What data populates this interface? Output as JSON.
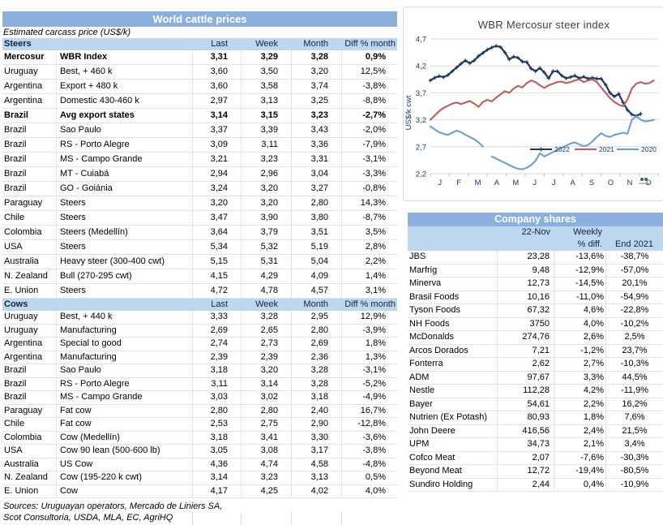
{
  "colors": {
    "title_bar": "#8CB0DE",
    "section_header": "#BDD7EE",
    "navy": "#1F3864",
    "red": "#C05B5B",
    "light_blue": "#6E9FD4",
    "gridline": "#D9D9D9",
    "row_border": "#E2E2E2",
    "chart_title_text": "#404040"
  },
  "left_table": {
    "title": "World cattle prices",
    "subtitle": "Estimated carcass price (US$/k)",
    "columns": [
      "Last",
      "Week",
      "Month",
      "Diff % month"
    ],
    "sections": [
      {
        "label": "Steers",
        "rows": [
          {
            "country": "Mercosur",
            "desc": "WBR Index",
            "last": "3,31",
            "week": "3,29",
            "month": "3,28",
            "diff": "0,9%",
            "bold": true
          },
          {
            "country": "Uruguay",
            "desc": "Best, + 460 k",
            "last": "3,60",
            "week": "3,50",
            "month": "3,20",
            "diff": "12,5%"
          },
          {
            "country": "Argentina",
            "desc": "Export + 480 k",
            "last": "3,60",
            "week": "3,58",
            "month": "3,74",
            "diff": "-3,8%"
          },
          {
            "country": "Argentina",
            "desc": "Domestic 430-460 k",
            "last": "2,97",
            "week": "3,13",
            "month": "3,25",
            "diff": "-8,8%"
          },
          {
            "country": "Brazil",
            "desc": "Avg export states",
            "last": "3,14",
            "week": "3,15",
            "month": "3,23",
            "diff": "-2,7%",
            "bold": true
          },
          {
            "country": "Brazil",
            "desc": "Sao Paulo",
            "last": "3,37",
            "week": "3,39",
            "month": "3,43",
            "diff": "-2,0%"
          },
          {
            "country": "Brazil",
            "desc": "RS - Porto Alegre",
            "last": "3,09",
            "week": "3,11",
            "month": "3,36",
            "diff": "-7,9%"
          },
          {
            "country": "Brazil",
            "desc": "MS - Campo Grande",
            "last": "3,21",
            "week": "3,23",
            "month": "3,31",
            "diff": "-3,1%"
          },
          {
            "country": "Brazil",
            "desc": "MT - Cuiabá",
            "last": "2,94",
            "week": "2,96",
            "month": "3,04",
            "diff": "-3,3%"
          },
          {
            "country": "Brazil",
            "desc": "GO - Goiánia",
            "last": "3,24",
            "week": "3,20",
            "month": "3,27",
            "diff": "-0,8%"
          },
          {
            "country": "Paraguay",
            "desc": "Steers",
            "last": "3,20",
            "week": "3,20",
            "month": "2,80",
            "diff": "14,3%"
          },
          {
            "country": "Chile",
            "desc": "Steers",
            "last": "3,47",
            "week": "3,90",
            "month": "3,80",
            "diff": "-8,7%"
          },
          {
            "country": "Colombia",
            "desc": "Steers (Medellín)",
            "last": "3,64",
            "week": "3,79",
            "month": "3,51",
            "diff": "3,5%"
          },
          {
            "country": "USA",
            "desc": "Steers",
            "last": "5,34",
            "week": "5,32",
            "month": "5,19",
            "diff": "2,8%"
          },
          {
            "country": "Australia",
            "desc": "Heavy steer (300-400 cwt)",
            "last": "5,15",
            "week": "5,31",
            "month": "5,04",
            "diff": "2,2%"
          },
          {
            "country": "N. Zealand",
            "desc": "Bull (270-295 cwt)",
            "last": "4,15",
            "week": "4,29",
            "month": "4,09",
            "diff": "1,4%"
          },
          {
            "country": "E. Union",
            "desc": "Steers",
            "last": "4,72",
            "week": "4,78",
            "month": "4,57",
            "diff": "3,1%"
          }
        ]
      },
      {
        "label": "Cows",
        "rows": [
          {
            "country": "Uruguay",
            "desc": "Best, + 440 k",
            "last": "3,33",
            "week": "3,28",
            "month": "2,95",
            "diff": "12,9%"
          },
          {
            "country": "Uruguay",
            "desc": "Manufacturing",
            "last": "2,69",
            "week": "2,65",
            "month": "2,80",
            "diff": "-3,9%"
          },
          {
            "country": "Argentina",
            "desc": "Special to good",
            "last": "2,74",
            "week": "2,73",
            "month": "2,69",
            "diff": "1,8%"
          },
          {
            "country": "Argentina",
            "desc": "Manufacturing",
            "last": "2,39",
            "week": "2,39",
            "month": "2,36",
            "diff": "1,3%"
          },
          {
            "country": "Brazil",
            "desc": "Sao Paulo",
            "last": "3,18",
            "week": "3,20",
            "month": "3,28",
            "diff": "-3,1%"
          },
          {
            "country": "Brazil",
            "desc": "RS - Porto Alegre",
            "last": "3,11",
            "week": "3,14",
            "month": "3,28",
            "diff": "-5,2%"
          },
          {
            "country": "Brazil",
            "desc": "MS - Campo Grande",
            "last": "3,03",
            "week": "3,02",
            "month": "3,18",
            "diff": "-4,9%"
          },
          {
            "country": "Paraguay",
            "desc": "Fat cow",
            "last": "2,80",
            "week": "2,80",
            "month": "2,40",
            "diff": "16,7%"
          },
          {
            "country": "Chile",
            "desc": "Fat cow",
            "last": "2,53",
            "week": "2,75",
            "month": "2,90",
            "diff": "-12,8%"
          },
          {
            "country": "Colombia",
            "desc": "Cow (Medellín)",
            "last": "3,18",
            "week": "3,41",
            "month": "3,30",
            "diff": "-3,6%"
          },
          {
            "country": "USA",
            "desc": "Cow 90 lean (500-600 lb)",
            "last": "3,05",
            "week": "3,08",
            "month": "3,17",
            "diff": "-3,8%"
          },
          {
            "country": "Australia",
            "desc": "US Cow",
            "last": "4,36",
            "week": "4,74",
            "month": "4,58",
            "diff": "-4,8%"
          },
          {
            "country": "N. Zealand",
            "desc": "Cow (195-220 k cwt)",
            "last": "3,14",
            "week": "3,23",
            "month": "3,13",
            "diff": "0,5%"
          },
          {
            "country": "E. Union",
            "desc": "Cow",
            "last": "4,17",
            "week": "4,25",
            "month": "4,02",
            "diff": "4,0%"
          }
        ]
      }
    ],
    "sources": [
      "Sources: Uruguayan operators, Mercado de Liniers SA,",
      "Scot Consultoria, USDA, MLA, EC, AgriHQ"
    ]
  },
  "chart_data": {
    "type": "line",
    "title": "WBR Mercosur steer index",
    "ylabel": "US$/k cwt",
    "ylim": [
      2.2,
      4.7
    ],
    "yticks": [
      4.7,
      4.2,
      3.7,
      3.2,
      2.7,
      2.2
    ],
    "ytick_labels": [
      "4,7",
      "4,2",
      "3,7",
      "3,2",
      "2,7",
      "2,2"
    ],
    "x_axis": {
      "unit": "weeks",
      "total": 52,
      "month_labels": [
        "J",
        "F",
        "M",
        "A",
        "M",
        "J",
        "J",
        "A",
        "S",
        "O",
        "N",
        "D"
      ]
    },
    "grid": "horizontal",
    "legend_position": "inside-bottom-right",
    "series": [
      {
        "name": "2022",
        "color": "#1F3864",
        "marker": "plus",
        "points": [
          [
            0,
            3.93
          ],
          [
            1,
            3.98
          ],
          [
            2,
            4.01
          ],
          [
            3,
            3.99
          ],
          [
            4,
            4.03
          ],
          [
            5,
            4.1
          ],
          [
            6,
            4.17
          ],
          [
            7,
            4.24
          ],
          [
            8,
            4.3
          ],
          [
            9,
            4.25
          ],
          [
            10,
            4.3
          ],
          [
            11,
            4.38
          ],
          [
            12,
            4.44
          ],
          [
            13,
            4.5
          ],
          [
            14,
            4.54
          ],
          [
            15,
            4.57
          ],
          [
            16,
            4.55
          ],
          [
            17,
            4.45
          ],
          [
            18,
            4.32
          ],
          [
            19,
            4.37
          ],
          [
            20,
            4.35
          ],
          [
            21,
            4.28
          ],
          [
            22,
            4.27
          ],
          [
            23,
            4.15
          ],
          [
            24,
            4.1
          ],
          [
            25,
            4.16
          ],
          [
            26,
            4.08
          ],
          [
            27,
            3.97
          ],
          [
            28,
            4.1
          ],
          [
            29,
            4.1
          ],
          [
            30,
            4.02
          ],
          [
            31,
            3.97
          ],
          [
            32,
            3.99
          ],
          [
            33,
            4.02
          ],
          [
            34,
            3.97
          ],
          [
            35,
            4.0
          ],
          [
            36,
            3.96
          ],
          [
            37,
            3.98
          ],
          [
            38,
            3.96
          ],
          [
            39,
            3.96
          ],
          [
            40,
            3.85
          ],
          [
            41,
            3.7
          ],
          [
            42,
            3.63
          ],
          [
            43,
            3.68
          ],
          [
            44,
            3.52
          ],
          [
            45,
            3.38
          ],
          [
            46,
            3.3
          ],
          [
            47,
            3.27
          ],
          [
            48,
            3.31
          ]
        ]
      },
      {
        "name": "2021",
        "color": "#C05B5B",
        "marker": "none",
        "points": [
          [
            0,
            3.2
          ],
          [
            1,
            3.28
          ],
          [
            2,
            3.36
          ],
          [
            3,
            3.42
          ],
          [
            4,
            3.46
          ],
          [
            5,
            3.5
          ],
          [
            6,
            3.52
          ],
          [
            7,
            3.49
          ],
          [
            8,
            3.52
          ],
          [
            9,
            3.55
          ],
          [
            10,
            3.5
          ],
          [
            11,
            3.44
          ],
          [
            12,
            3.53
          ],
          [
            13,
            3.57
          ],
          [
            14,
            3.54
          ],
          [
            15,
            3.61
          ],
          [
            16,
            3.67
          ],
          [
            17,
            3.73
          ],
          [
            18,
            3.7
          ],
          [
            19,
            3.78
          ],
          [
            20,
            3.83
          ],
          [
            21,
            3.8
          ],
          [
            22,
            3.88
          ],
          [
            23,
            3.93
          ],
          [
            24,
            3.9
          ],
          [
            25,
            3.84
          ],
          [
            26,
            3.79
          ],
          [
            27,
            3.84
          ],
          [
            28,
            3.87
          ],
          [
            29,
            3.9
          ],
          [
            30,
            3.91
          ],
          [
            31,
            3.88
          ],
          [
            32,
            3.9
          ],
          [
            33,
            3.93
          ],
          [
            34,
            3.95
          ],
          [
            35,
            3.9
          ],
          [
            36,
            3.93
          ],
          [
            37,
            3.95
          ],
          [
            38,
            3.9
          ],
          [
            39,
            3.8
          ],
          [
            40,
            3.7
          ],
          [
            41,
            3.6
          ],
          [
            42,
            3.53
          ],
          [
            43,
            3.48
          ],
          [
            44,
            3.45
          ],
          [
            45,
            3.58
          ],
          [
            46,
            3.78
          ],
          [
            47,
            3.87
          ],
          [
            48,
            3.9
          ],
          [
            49,
            3.87
          ],
          [
            50,
            3.88
          ],
          [
            51,
            3.93
          ]
        ]
      },
      {
        "name": "2020",
        "color": "#6E9FD4",
        "marker": "none",
        "points": [
          [
            0,
            3.08
          ],
          [
            1,
            3.02
          ],
          [
            2,
            2.97
          ],
          [
            3,
            2.94
          ],
          [
            4,
            2.92
          ],
          [
            5,
            2.96
          ],
          [
            6,
            3.0
          ],
          [
            7,
            2.97
          ],
          [
            8,
            2.92
          ],
          [
            9,
            2.88
          ],
          [
            10,
            2.84
          ],
          [
            11,
            2.78
          ],
          [
            12,
            2.7
          ],
          null,
          [
            14,
            2.52
          ],
          [
            15,
            2.48
          ],
          [
            16,
            2.44
          ],
          [
            17,
            2.4
          ],
          [
            18,
            2.36
          ],
          [
            19,
            2.32
          ],
          [
            20,
            2.29
          ],
          [
            21,
            2.28
          ],
          [
            22,
            2.31
          ],
          [
            23,
            2.36
          ],
          [
            24,
            2.44
          ],
          [
            25,
            2.58
          ],
          [
            26,
            2.52
          ],
          [
            27,
            2.56
          ],
          [
            28,
            2.6
          ],
          [
            29,
            2.64
          ],
          [
            30,
            2.68
          ],
          [
            31,
            2.72
          ],
          [
            32,
            2.76
          ],
          [
            33,
            2.78
          ],
          [
            34,
            2.74
          ],
          [
            35,
            2.71
          ],
          [
            36,
            2.73
          ],
          [
            37,
            2.8
          ],
          [
            38,
            2.88
          ],
          [
            39,
            2.95
          ],
          [
            40,
            2.9
          ],
          [
            41,
            2.88
          ],
          [
            42,
            2.92
          ],
          [
            43,
            2.94
          ],
          [
            44,
            2.96
          ],
          [
            45,
            2.94
          ],
          [
            46,
            3.2
          ],
          [
            47,
            3.27
          ],
          [
            48,
            3.2
          ],
          [
            49,
            3.17
          ],
          [
            50,
            3.18
          ],
          [
            51,
            3.2
          ]
        ]
      }
    ]
  },
  "company_shares": {
    "title": "Company shares",
    "header": {
      "date": "22-Nov",
      "weekly_line1": "Weekly",
      "weekly_line2": "% diff.",
      "end": "End 2021"
    },
    "rows": [
      {
        "name": "JBS",
        "price": "23,28",
        "weekly": "-13,6%",
        "end2021": "-38,7%"
      },
      {
        "name": "Marfrig",
        "price": "9,48",
        "weekly": "-12,9%",
        "end2021": "-57,0%"
      },
      {
        "name": "Minerva",
        "price": "12,73",
        "weekly": "-14,5%",
        "end2021": "20,1%"
      },
      {
        "name": "Brasil Foods",
        "price": "10,16",
        "weekly": "-11,0%",
        "end2021": "-54,9%"
      },
      {
        "name": "Tyson Foods",
        "price": "67,32",
        "weekly": "4,6%",
        "end2021": "-22,8%"
      },
      {
        "name": "NH Foods",
        "price": "3750",
        "weekly": "4,0%",
        "end2021": "-10,2%"
      },
      {
        "name": "McDonalds",
        "price": "274,76",
        "weekly": "2,6%",
        "end2021": "2,5%"
      },
      {
        "name": "Arcos Dorados",
        "price": "7,21",
        "weekly": "-1,2%",
        "end2021": "23,7%"
      },
      {
        "name": "Fonterra",
        "price": "2,62",
        "weekly": "2,7%",
        "end2021": "-10,3%"
      },
      {
        "name": "ADM",
        "price": "97,67",
        "weekly": "3,3%",
        "end2021": "44,5%"
      },
      {
        "name": "Nestle",
        "price": "112,28",
        "weekly": "4,2%",
        "end2021": "-11,9%"
      },
      {
        "name": "Bayer",
        "price": "54,61",
        "weekly": "2,2%",
        "end2021": "16,2%"
      },
      {
        "name": "Nutrien (Ex Potash)",
        "price": "80,93",
        "weekly": "1,8%",
        "end2021": "7,6%"
      },
      {
        "name": "John Deere",
        "price": "416,56",
        "weekly": "2,4%",
        "end2021": "21,5%"
      },
      {
        "name": "UPM",
        "price": "34,73",
        "weekly": "2,1%",
        "end2021": "3,4%"
      },
      {
        "name": "Cofco Meat",
        "price": "2,07",
        "weekly": "-7,6%",
        "end2021": "-30,3%"
      },
      {
        "name": "Beyond Meat",
        "price": "12,72",
        "weekly": "-19,4%",
        "end2021": "-80,5%"
      },
      {
        "name": "Sundiro Holding",
        "price": "2,44",
        "weekly": "0,4%",
        "end2021": "-10,9%"
      }
    ]
  }
}
